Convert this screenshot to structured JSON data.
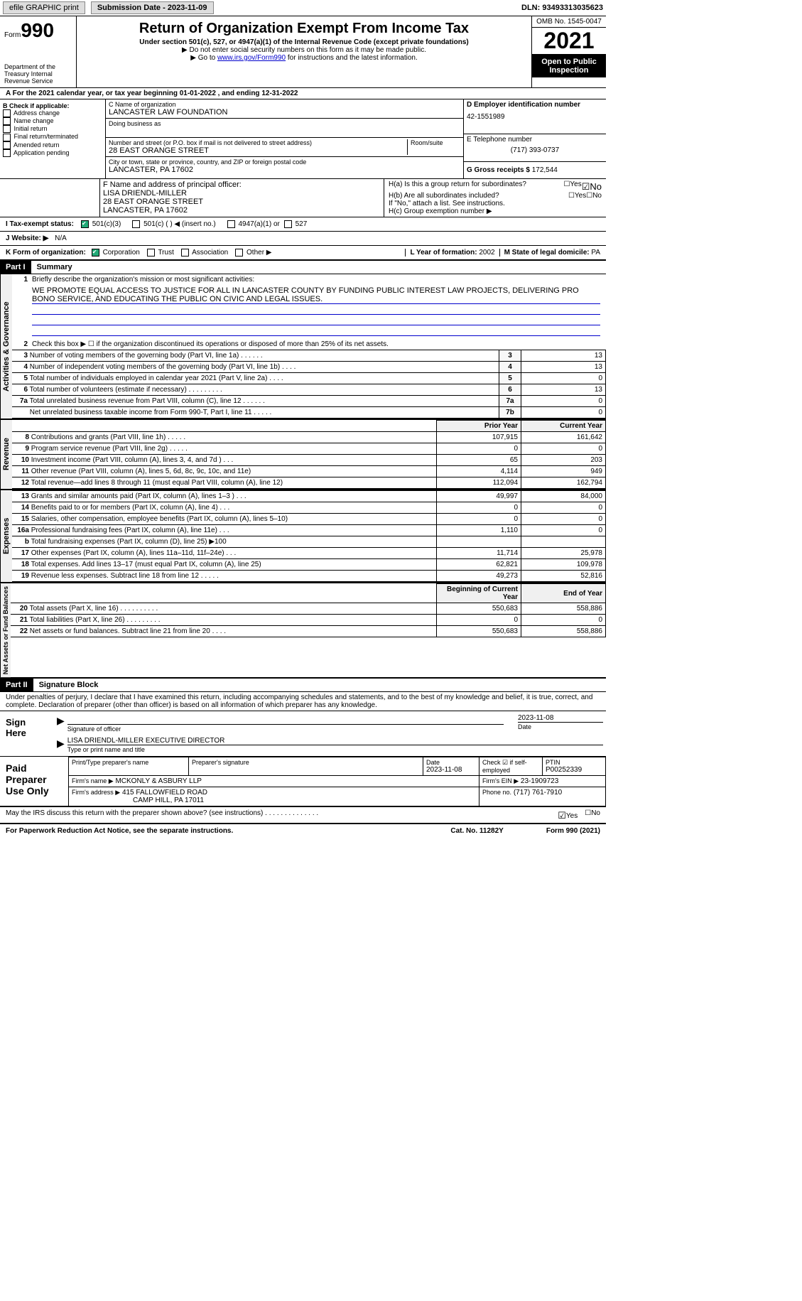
{
  "topbar": {
    "efile": "efile GRAPHIC print",
    "submission_label": "Submission Date - 2023-11-09",
    "dln": "DLN: 93493313035623"
  },
  "header": {
    "form_word": "Form",
    "form_num": "990",
    "dept": "Department of the Treasury Internal Revenue Service",
    "title": "Return of Organization Exempt From Income Tax",
    "sub": "Under section 501(c), 527, or 4947(a)(1) of the Internal Revenue Code (except private foundations)",
    "note1": "▶ Do not enter social security numbers on this form as it may be made public.",
    "note2_pre": "▶ Go to ",
    "note2_link": "www.irs.gov/Form990",
    "note2_post": " for instructions and the latest information.",
    "omb": "OMB No. 1545-0047",
    "year": "2021",
    "inspection": "Open to Public Inspection"
  },
  "period": {
    "text": "A For the 2021 calendar year, or tax year beginning 01-01-2022   , and ending 12-31-2022"
  },
  "B": {
    "label": "B Check if applicable:",
    "items": [
      "Address change",
      "Name change",
      "Initial return",
      "Final return/terminated",
      "Amended return",
      "Application pending"
    ]
  },
  "C": {
    "name_label": "C Name of organization",
    "name": "LANCASTER LAW FOUNDATION",
    "dba_label": "Doing business as",
    "dba": "",
    "street_label": "Number and street (or P.O. box if mail is not delivered to street address)",
    "room_label": "Room/suite",
    "street": "28 EAST ORANGE STREET",
    "city_label": "City or town, state or province, country, and ZIP or foreign postal code",
    "city": "LANCASTER, PA  17602"
  },
  "D": {
    "ein_label": "D Employer identification number",
    "ein": "42-1551989",
    "phone_label": "E Telephone number",
    "phone": "(717) 393-0737",
    "gross_label": "G Gross receipts $",
    "gross": "172,544"
  },
  "F": {
    "label": "F  Name and address of principal officer:",
    "name": "LISA DRIENDL-MILLER",
    "street": "28 EAST ORANGE STREET",
    "city": "LANCASTER, PA  17602"
  },
  "H": {
    "a": "H(a)  Is this a group return for subordinates?",
    "b": "H(b)  Are all subordinates included?",
    "b_note": "If \"No,\" attach a list. See instructions.",
    "c": "H(c)  Group exemption number ▶"
  },
  "I": {
    "label": "I   Tax-exempt status:",
    "opts": [
      "501(c)(3)",
      "501(c) (  ) ◀ (insert no.)",
      "4947(a)(1) or",
      "527"
    ]
  },
  "J": {
    "label": "J   Website: ▶",
    "val": "N/A"
  },
  "K": {
    "label": "K Form of organization:",
    "opts": [
      "Corporation",
      "Trust",
      "Association",
      "Other ▶"
    ]
  },
  "L": {
    "label": "L Year of formation:",
    "val": "2002"
  },
  "M": {
    "label": "M State of legal domicile:",
    "val": "PA"
  },
  "partI": {
    "header": "Part I",
    "title": "Summary"
  },
  "s1": {
    "label": "Activities & Governance",
    "l1": "Briefly describe the organization's mission or most significant activities:",
    "mission": "WE PROMOTE EQUAL ACCESS TO JUSTICE FOR ALL IN LANCASTER COUNTY BY FUNDING PUBLIC INTEREST LAW PROJECTS, DELIVERING PRO BONO SERVICE, AND EDUCATING THE PUBLIC ON CIVIC AND LEGAL ISSUES.",
    "l2": "Check this box ▶ ☐ if the organization discontinued its operations or disposed of more than 25% of its net assets.",
    "rows": [
      {
        "n": "3",
        "d": "Number of voting members of the governing body (Part VI, line 1a)   .    .    .    .    .    .",
        "b": "3",
        "v": "13"
      },
      {
        "n": "4",
        "d": "Number of independent voting members of the governing body (Part VI, line 1b)  .    .    .    .",
        "b": "4",
        "v": "13"
      },
      {
        "n": "5",
        "d": "Total number of individuals employed in calendar year 2021 (Part V, line 2a)   .     .    .    .",
        "b": "5",
        "v": "0"
      },
      {
        "n": "6",
        "d": "Total number of volunteers (estimate if necessary)    .    .    .    .    .    .    .    .    .",
        "b": "6",
        "v": "13"
      },
      {
        "n": "7a",
        "d": "Total unrelated business revenue from Part VIII, column (C), line 12   .    .    .    .    .    .",
        "b": "7a",
        "v": "0"
      },
      {
        "n": "",
        "d": "Net unrelated business taxable income from Form 990-T, Part I, line 11   .    .    .    .    .",
        "b": "7b",
        "v": "0"
      }
    ]
  },
  "s2": {
    "label": "Revenue",
    "header_prior": "Prior Year",
    "header_curr": "Current Year",
    "rows": [
      {
        "n": "8",
        "d": "Contributions and grants (Part VIII, line 1h)   .    .    .    .    .",
        "p": "107,915",
        "c": "161,642"
      },
      {
        "n": "9",
        "d": "Program service revenue (Part VIII, line 2g)   .    .    .    .    .",
        "p": "0",
        "c": "0"
      },
      {
        "n": "10",
        "d": "Investment income (Part VIII, column (A), lines 3, 4, and 7d )   .    .    .",
        "p": "65",
        "c": "203"
      },
      {
        "n": "11",
        "d": "Other revenue (Part VIII, column (A), lines 5, 6d, 8c, 9c, 10c, and 11e)",
        "p": "4,114",
        "c": "949"
      },
      {
        "n": "12",
        "d": "Total revenue—add lines 8 through 11 (must equal Part VIII, column (A), line 12)",
        "p": "112,094",
        "c": "162,794"
      }
    ]
  },
  "s3": {
    "label": "Expenses",
    "rows": [
      {
        "n": "13",
        "d": "Grants and similar amounts paid (Part IX, column (A), lines 1–3 )   .    .    .",
        "p": "49,997",
        "c": "84,000"
      },
      {
        "n": "14",
        "d": "Benefits paid to or for members (Part IX, column (A), line 4)   .    .    .",
        "p": "0",
        "c": "0"
      },
      {
        "n": "15",
        "d": "Salaries, other compensation, employee benefits (Part IX, column (A), lines 5–10)",
        "p": "0",
        "c": "0"
      },
      {
        "n": "16a",
        "d": "Professional fundraising fees (Part IX, column (A), line 11e)   .    .    .",
        "p": "1,110",
        "c": "0"
      },
      {
        "n": "b",
        "d": "Total fundraising expenses (Part IX, column (D), line 25) ▶100",
        "p": "",
        "c": "",
        "gray": true
      },
      {
        "n": "17",
        "d": "Other expenses (Part IX, column (A), lines 11a–11d, 11f–24e)   .    .    .",
        "p": "11,714",
        "c": "25,978"
      },
      {
        "n": "18",
        "d": "Total expenses. Add lines 13–17 (must equal Part IX, column (A), line 25)",
        "p": "62,821",
        "c": "109,978"
      },
      {
        "n": "19",
        "d": "Revenue less expenses. Subtract line 18 from line 12   .    .    .    .    .",
        "p": "49,273",
        "c": "52,816"
      }
    ]
  },
  "s4": {
    "label": "Net Assets or Fund Balances",
    "header_prior": "Beginning of Current Year",
    "header_curr": "End of Year",
    "rows": [
      {
        "n": "20",
        "d": "Total assets (Part X, line 16)  .    .    .    .    .    .    .    .    .    .",
        "p": "550,683",
        "c": "558,886"
      },
      {
        "n": "21",
        "d": "Total liabilities (Part X, line 26)  .    .    .    .    .    .    .    .    .",
        "p": "0",
        "c": "0"
      },
      {
        "n": "22",
        "d": "Net assets or fund balances. Subtract line 21 from line 20   .    .    .    .",
        "p": "550,683",
        "c": "558,886"
      }
    ]
  },
  "partII": {
    "header": "Part II",
    "title": "Signature Block"
  },
  "sig": {
    "penalties": "Under penalties of perjury, I declare that I have examined this return, including accompanying schedules and statements, and to the best of my knowledge and belief, it is true, correct, and complete. Declaration of preparer (other than officer) is based on all information of which preparer has any knowledge.",
    "sign_here": "Sign Here",
    "sig_officer": "Signature of officer",
    "sig_date": "2023-11-08",
    "name_title": "LISA DRIENDL-MILLER  EXECUTIVE DIRECTOR",
    "type_label": "Type or print name and title",
    "date_label": "Date"
  },
  "prep": {
    "label": "Paid Preparer Use Only",
    "print_name_label": "Print/Type preparer's name",
    "print_name": "",
    "sig_label": "Preparer's signature",
    "date_label": "Date",
    "date": "2023-11-08",
    "check_label": "Check ☑ if self-employed",
    "ptin_label": "PTIN",
    "ptin": "P00252339",
    "firm_name_label": "Firm's name    ▶",
    "firm_name": "MCKONLY & ASBURY LLP",
    "firm_ein_label": "Firm's EIN ▶",
    "firm_ein": "23-1909723",
    "firm_addr_label": "Firm's address ▶",
    "firm_addr1": "415 FALLOWFIELD ROAD",
    "firm_addr2": "CAMP HILL, PA  17011",
    "phone_label": "Phone no.",
    "phone": "(717) 761-7910"
  },
  "discuss": {
    "q": "May the IRS discuss this return with the preparer shown above? (see instructions)   .    .    .    .    .    .    .    .    .    .    .    .    .    .",
    "yes": "Yes",
    "no": "No"
  },
  "footer": {
    "left": "For Paperwork Reduction Act Notice, see the separate instructions.",
    "mid": "Cat. No. 11282Y",
    "right": "Form 990 (2021)"
  }
}
